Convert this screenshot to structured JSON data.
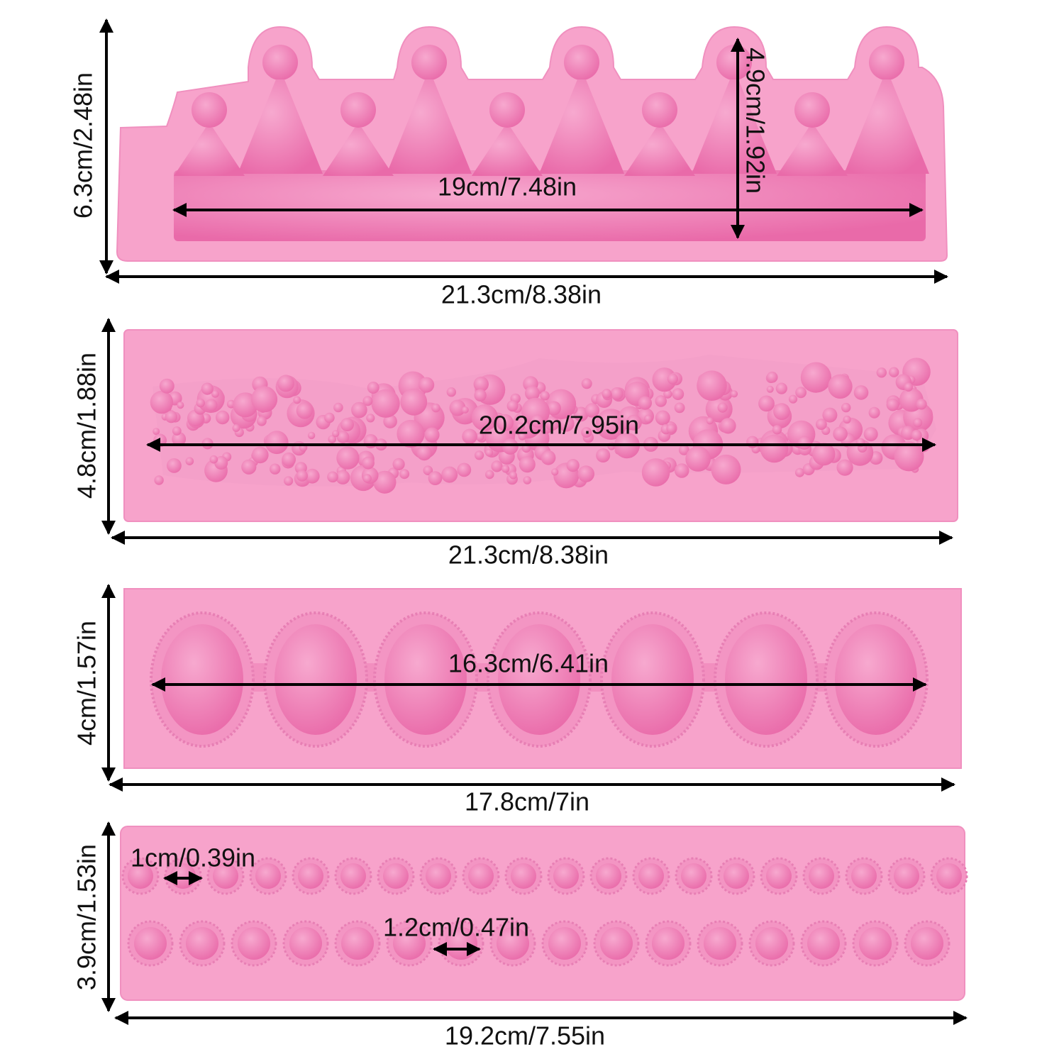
{
  "molds": [
    {
      "height": "6.3cm/2.48in",
      "width": "21.3cm/8.38in",
      "inner_width": "19cm/7.48in",
      "inner_height": "4.9cm/1.92in"
    },
    {
      "height": "4.8cm/1.88in",
      "width": "21.3cm/8.38in",
      "inner_width": "20.2cm/7.95in"
    },
    {
      "height": "4cm/1.57in",
      "width": "17.8cm/7in",
      "inner_width": "16.3cm/6.41in"
    },
    {
      "height": "3.9cm/1.53in",
      "width": "19.2cm/7.55in",
      "small_gap": "1cm/0.39in",
      "large_gap": "1.2cm/0.47in"
    }
  ]
}
